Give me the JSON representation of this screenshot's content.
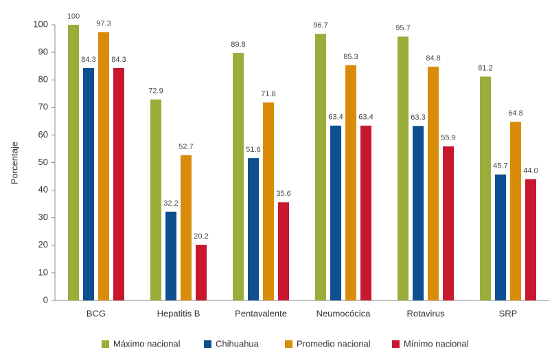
{
  "chart_data": {
    "type": "bar",
    "y_label": "Porcentaje",
    "categories": [
      "BCG",
      "Hepatitis B",
      "Pentavalente",
      "Neumocócica",
      "Rotavirus",
      "SRP"
    ],
    "series": [
      {
        "name": "Máximo nacional",
        "color": "#9aad3a",
        "values": [
          100,
          72.9,
          89.8,
          96.7,
          95.7,
          81.2
        ]
      },
      {
        "name": "Chihuahua",
        "color": "#0d4f91",
        "values": [
          84.3,
          32.2,
          51.6,
          63.4,
          63.3,
          45.7
        ]
      },
      {
        "name": "Promedio nacional",
        "color": "#d98b0a",
        "values": [
          97.3,
          52.7,
          71.8,
          85.3,
          84.8,
          64.8
        ]
      },
      {
        "name": "Mínimo nacional",
        "color": "#c8182f",
        "values": [
          84.3,
          20.2,
          35.6,
          63.4,
          55.9,
          44.0
        ],
        "value_labels": [
          "84.3",
          "20.2",
          "35.6",
          "63.4",
          "55.9",
          "44.0"
        ]
      }
    ],
    "ylim": [
      0,
      100
    ],
    "yticks": [
      0,
      10,
      20,
      30,
      40,
      50,
      60,
      70,
      80,
      90,
      100
    ],
    "grid": false,
    "legend": "bottom"
  }
}
